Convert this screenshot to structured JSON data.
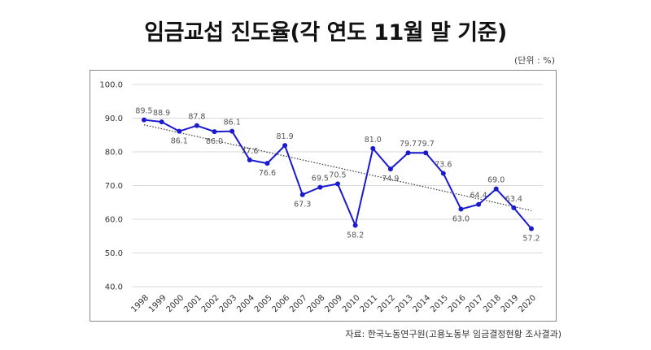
{
  "header": {
    "title": "임금교섭 진도율(각 연도 11월 말 기준)",
    "unit": "(단위 : %)"
  },
  "footer": {
    "source": "자료: 한국노동연구원(고용노동부 임금결정현황 조사결과)"
  },
  "colors": {
    "series": "#1a1ad0",
    "trendline": "#333333",
    "grid": "#d9d9d9"
  },
  "chart_data": {
    "type": "line",
    "title": "임금교섭 진도율(각 연도 11월 말 기준)",
    "xlabel": "",
    "ylabel": "",
    "x": [
      "1998",
      "1999",
      "2000",
      "2001",
      "2002",
      "2003",
      "2004",
      "2005",
      "2006",
      "2007",
      "2008",
      "2009",
      "2010",
      "2011",
      "2012",
      "2013",
      "2014",
      "2015",
      "2016",
      "2017",
      "2018",
      "2019",
      "2020"
    ],
    "series": [
      {
        "values": [
          89.5,
          88.9,
          86.1,
          87.8,
          86.0,
          86.1,
          77.6,
          76.6,
          81.9,
          67.3,
          69.5,
          70.5,
          58.2,
          81.0,
          74.9,
          79.7,
          79.7,
          73.6,
          63.0,
          64.4,
          69.0,
          63.4,
          57.2
        ],
        "labels": [
          "89.5",
          "88.9",
          "86.1",
          "87.8",
          "86.0",
          "86.1",
          "77.6",
          "76.6",
          "81.9",
          "67.3",
          "69.5",
          "70.5",
          "58.2",
          "81.0",
          "74.9",
          "79.7",
          "79.7",
          "73.6",
          "63.0",
          "64.4",
          "69.0",
          "63.4",
          "57.2"
        ]
      }
    ],
    "trendline": "linear, dotted",
    "ylim": [
      40,
      100
    ],
    "yticks": [
      "40.0",
      "50.0",
      "60.0",
      "70.0",
      "80.0",
      "90.0",
      "100.0"
    ],
    "grid": "horizontal",
    "legend": "none"
  }
}
